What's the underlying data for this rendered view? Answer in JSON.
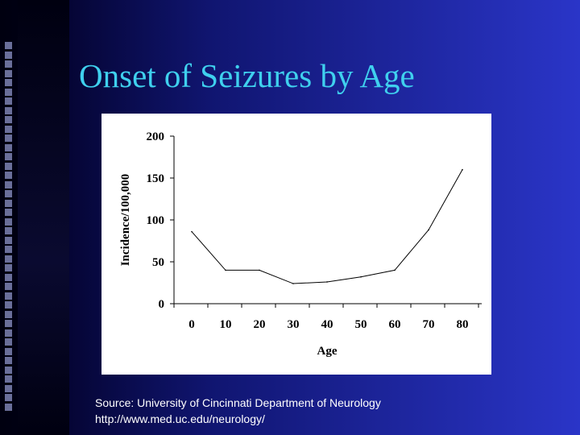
{
  "slide": {
    "title": "Onset of Seizures by Age",
    "source_line": "Source: University of Cincinnati Department of Neurology",
    "url_line": "http://www.med.uc.edu/neurology/"
  },
  "colors": {
    "title": "#3fd0ee",
    "background_left": "#050535",
    "background_right": "#2a35c8",
    "line": "#000000"
  },
  "chart_data": {
    "type": "line",
    "title": "",
    "xlabel": "Age",
    "ylabel": "Incidence/100,000",
    "x": [
      0,
      10,
      20,
      30,
      40,
      50,
      60,
      70,
      80
    ],
    "x_ticks": [
      "0",
      "10",
      "20",
      "30",
      "40",
      "50",
      "60",
      "70",
      "80"
    ],
    "y_ticks": [
      "0",
      "50",
      "100",
      "150",
      "200"
    ],
    "ylim": [
      0,
      200
    ],
    "xlim": [
      0,
      80
    ],
    "grid": false,
    "legend": "none",
    "series": [
      {
        "values": [
          86,
          40,
          40,
          24,
          26,
          32,
          40,
          88,
          160
        ]
      }
    ]
  }
}
